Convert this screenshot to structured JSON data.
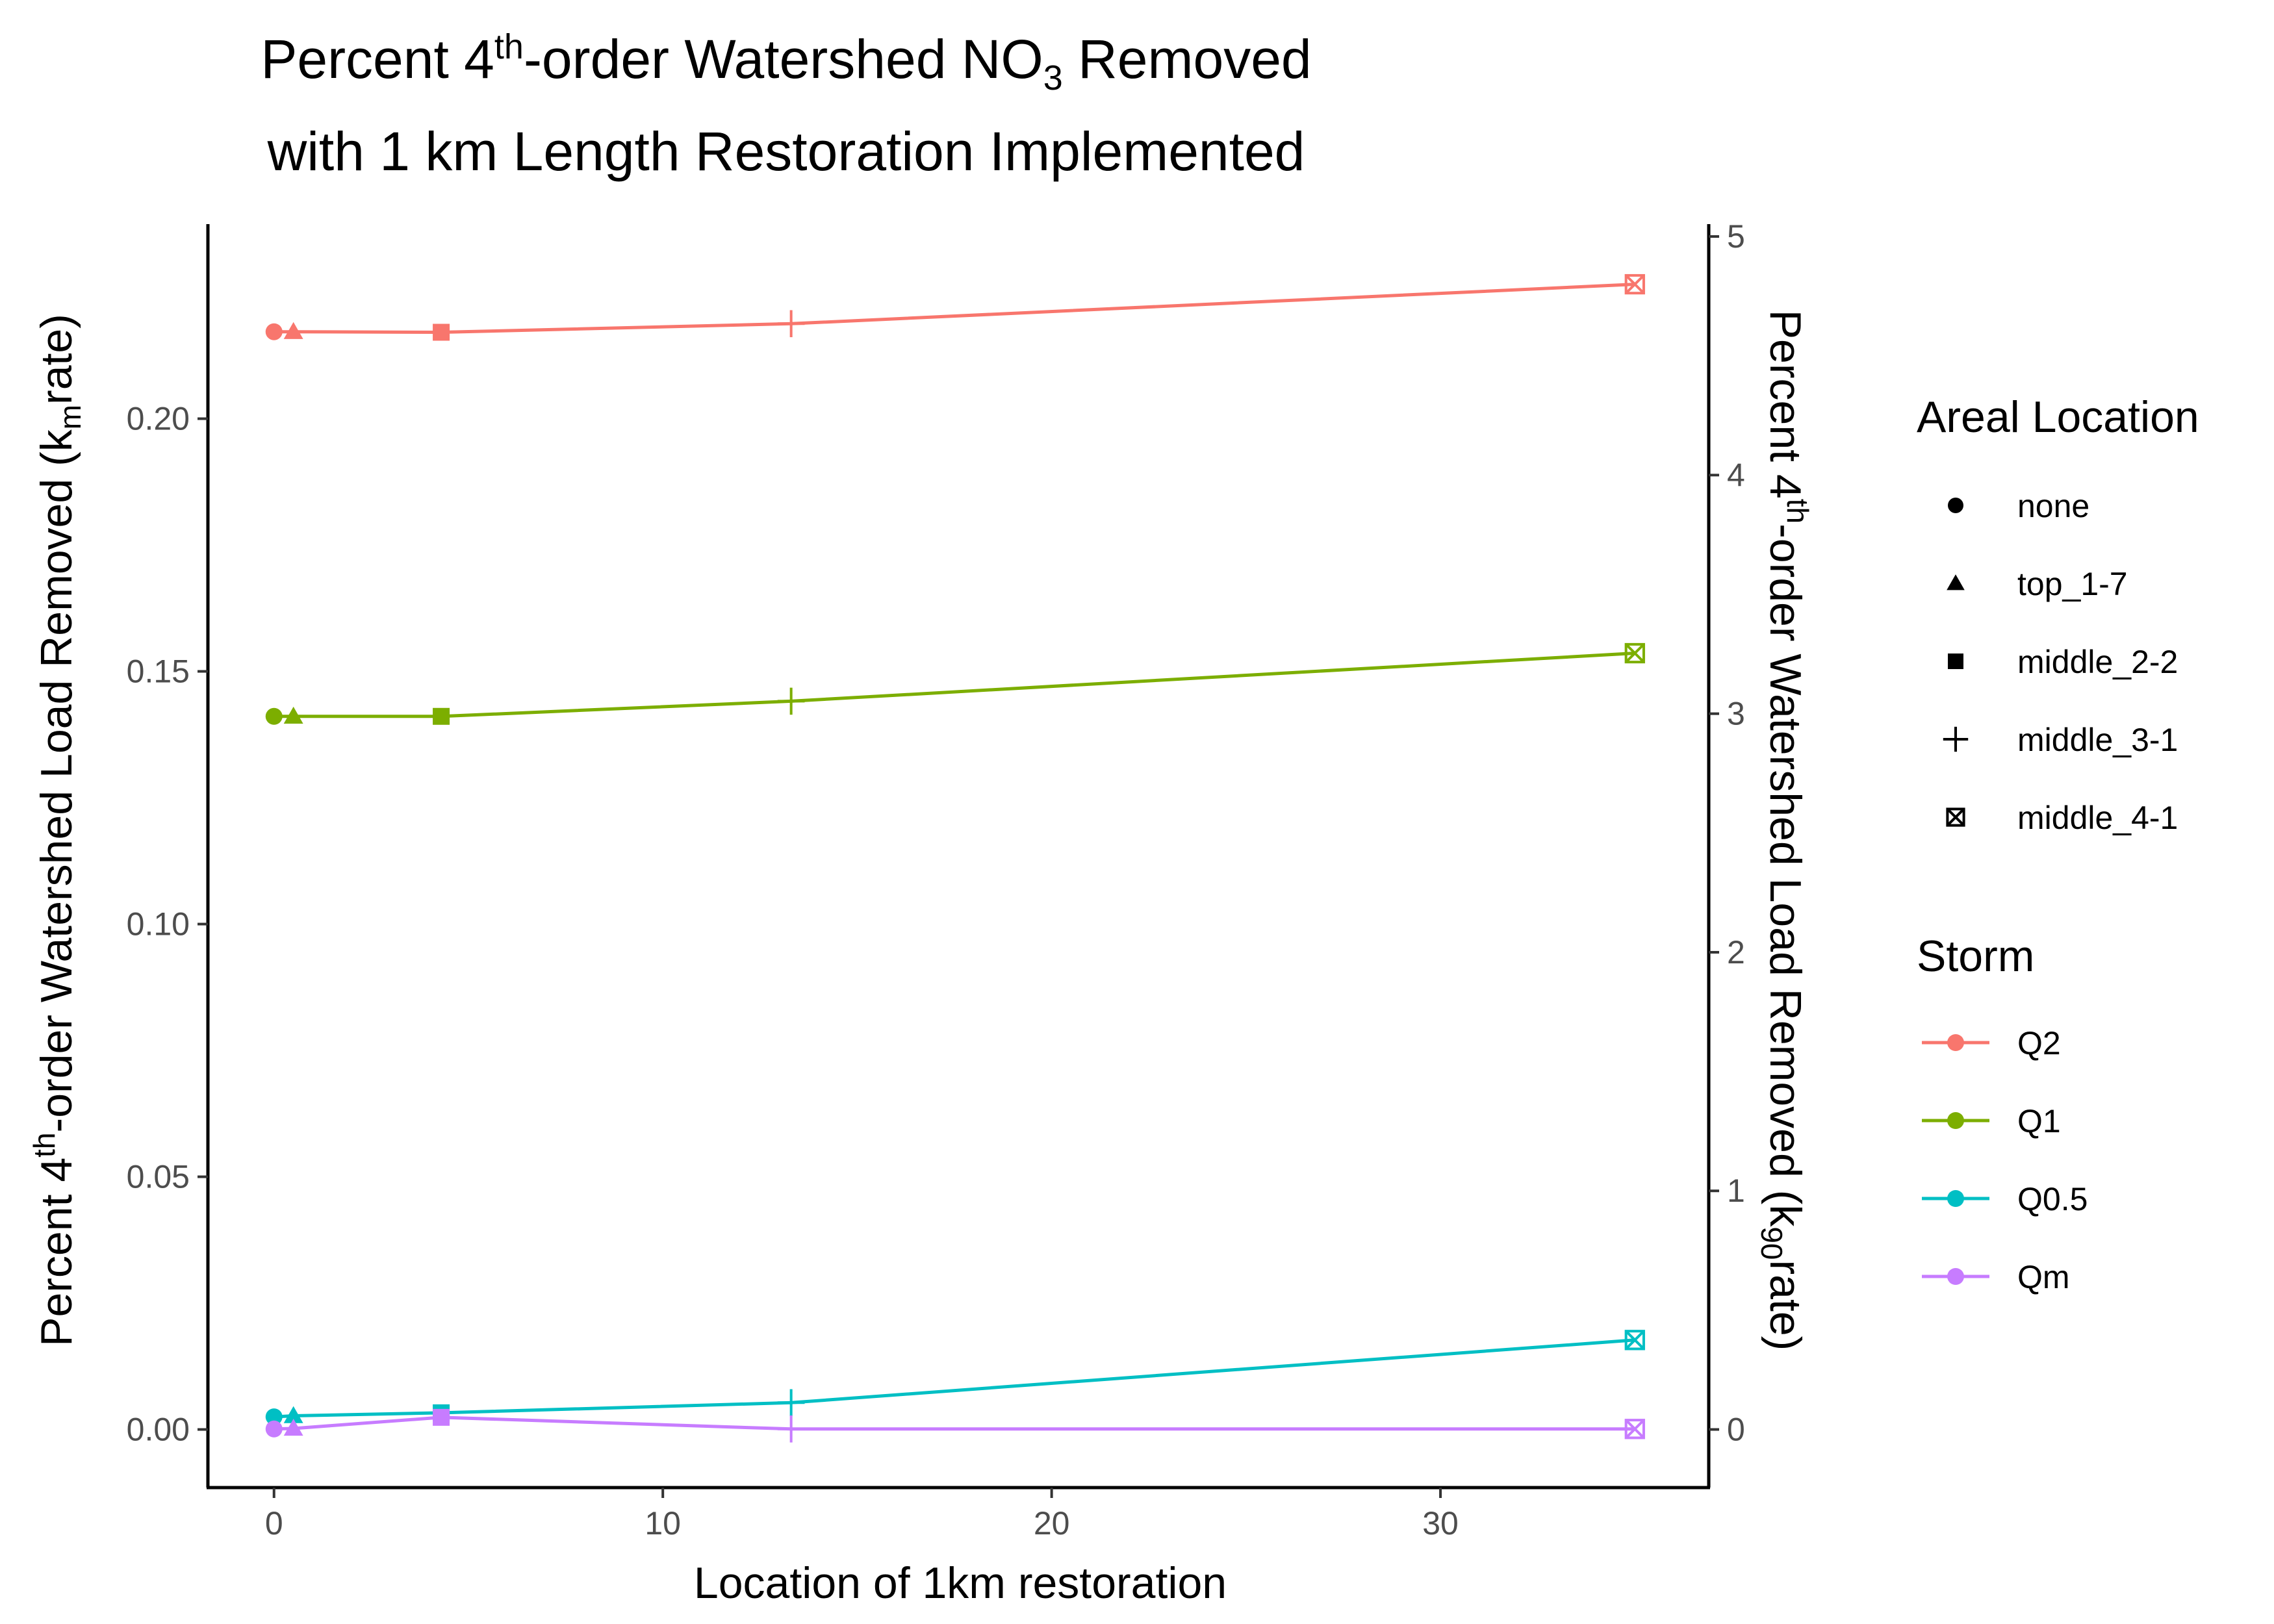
{
  "chart_data": {
    "type": "line",
    "title_line1": {
      "pre": "Percent 4",
      "sup": "th",
      "mid": "-order Watershed NO",
      "sub": "3",
      "post": " Removed"
    },
    "title_line2": "with 1 km Length Restoration Implemented",
    "xlabel": "Location of 1km restoration",
    "ylabel_left": {
      "pre": "Percent 4",
      "sup": "th",
      "mid": "-order Watershed Load Removed (k",
      "sub": "m",
      "post": "rate)"
    },
    "ylabel_right": {
      "pre": "Percent 4",
      "sup": "th",
      "mid": "-order Watershed Load Removed (k",
      "sub": "90",
      "post": "rate)"
    },
    "xlim": [
      -1.7,
      36.9
    ],
    "ylim_left": [
      -0.0115,
      0.2385
    ],
    "ylim_right": [
      -0.2436,
      5.0519
    ],
    "x_ticks": [
      0,
      10,
      20,
      30
    ],
    "x_tick_labels": [
      "0",
      "10",
      "20",
      "30"
    ],
    "y_left_ticks": [
      0.0,
      0.05,
      0.1,
      0.15,
      0.2
    ],
    "y_left_tick_labels": [
      "0.00",
      "0.05",
      "0.10",
      "0.15",
      "0.20"
    ],
    "y_right_ticks": [
      0,
      1,
      2,
      3,
      4,
      5
    ],
    "y_right_tick_labels": [
      "0",
      "1",
      "2",
      "3",
      "4",
      "5"
    ],
    "grid": false,
    "legend_position": "right",
    "x": [
      0,
      0.5,
      4.3,
      13.3,
      35.0
    ],
    "shape_legend": {
      "title": "Areal Location",
      "items": [
        {
          "label": "none",
          "shape": "circle"
        },
        {
          "label": "top_1-7",
          "shape": "triangle"
        },
        {
          "label": "middle_2-2",
          "shape": "square"
        },
        {
          "label": "middle_3-1",
          "shape": "plus"
        },
        {
          "label": "middle_4-1",
          "shape": "boxed-x"
        }
      ]
    },
    "color_legend": {
      "title": "Storm",
      "items": [
        {
          "label": "Q2",
          "color": "#F8766D"
        },
        {
          "label": "Q1",
          "color": "#7CAE00"
        },
        {
          "label": "Q0.5",
          "color": "#00BFC4"
        },
        {
          "label": "Qm",
          "color": "#C77CFF"
        }
      ]
    },
    "series": [
      {
        "name": "Q2",
        "color": "#F8766D",
        "values": [
          0.2172,
          0.2172,
          0.2171,
          0.2188,
          0.2266
        ]
      },
      {
        "name": "Q1",
        "color": "#7CAE00",
        "values": [
          0.1411,
          0.1411,
          0.1411,
          0.1441,
          0.1536
        ]
      },
      {
        "name": "Q0.5",
        "color": "#00BFC4",
        "values": [
          0.0025,
          0.0027,
          0.0033,
          0.0053,
          0.0177
        ]
      },
      {
        "name": "Qm",
        "color": "#C77CFF",
        "values": [
          0.0001,
          0.0002,
          0.0024,
          0.0001,
          0.0001
        ]
      }
    ]
  }
}
